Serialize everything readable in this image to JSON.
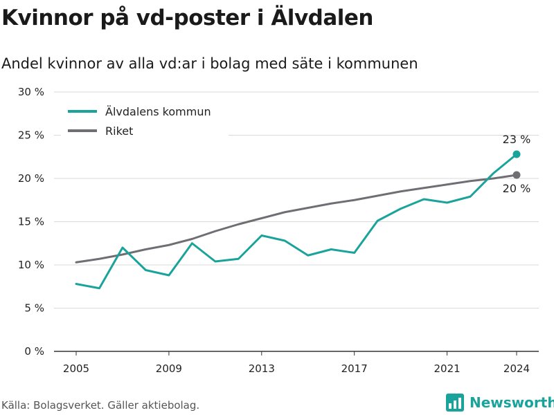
{
  "title": "Kvinnor på vd-poster i Älvdalen",
  "subtitle": "Andel kvinnor av alla vd:ar i bolag med säte i kommunen",
  "source": "Källa: Bolagsverket. Gäller aktiebolag.",
  "brand": "Newsworthy",
  "colors": {
    "kommun": "#1aa39a",
    "riket": "#6f6e73",
    "brand": "#1aa39a"
  },
  "chart_data": {
    "type": "line",
    "x": [
      2005,
      2006,
      2007,
      2008,
      2009,
      2010,
      2011,
      2012,
      2013,
      2014,
      2015,
      2016,
      2017,
      2018,
      2019,
      2020,
      2021,
      2022,
      2023,
      2024
    ],
    "series": [
      {
        "name": "Älvdalens kommun",
        "values": [
          7.8,
          7.3,
          12.0,
          9.4,
          8.8,
          12.5,
          10.4,
          10.7,
          13.4,
          12.8,
          11.1,
          11.8,
          11.4,
          15.1,
          16.5,
          17.6,
          17.2,
          17.9,
          20.6,
          22.8
        ]
      },
      {
        "name": "Riket",
        "values": [
          10.3,
          10.7,
          11.2,
          11.8,
          12.3,
          13.0,
          13.9,
          14.7,
          15.4,
          16.1,
          16.6,
          17.1,
          17.5,
          18.0,
          18.5,
          18.9,
          19.3,
          19.7,
          20.0,
          20.4
        ]
      }
    ],
    "end_labels": [
      "23 %",
      "20 %"
    ],
    "xticks": [
      "2005",
      "2009",
      "2013",
      "2017",
      "2021",
      "2024"
    ],
    "yticks": [
      "0 %",
      "5 %",
      "10 %",
      "15 %",
      "20 %",
      "25 %",
      "30 %"
    ],
    "ylim": [
      0,
      30
    ],
    "xlim": [
      2005,
      2024
    ],
    "grid": true,
    "legend": "top-left"
  }
}
